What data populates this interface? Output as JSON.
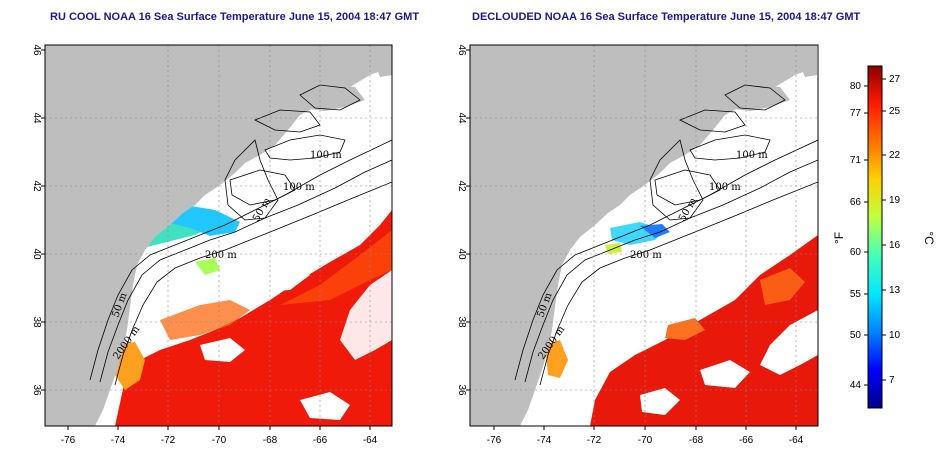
{
  "panels": [
    {
      "id": "left",
      "title": "RU COOL NOAA 16 Sea Surface Temperature June 15, 2004 18:47 GMT"
    },
    {
      "id": "right",
      "title": "DECLOUDED NOAA 16 Sea Surface Temperature June 15, 2004 18:47 GMT"
    }
  ],
  "axes": {
    "lon_ticks": [
      "-76",
      "-74",
      "-72",
      "-70",
      "-68",
      "-66",
      "-64"
    ],
    "lat_ticks": [
      "46",
      "44",
      "42",
      "40",
      "38",
      "36"
    ]
  },
  "contour_labels": [
    "100 m",
    "100 m",
    "50 m",
    "200 m",
    "50 m",
    "2000 m"
  ],
  "colorbar": {
    "fahrenheit_ticks": [
      "80",
      "77",
      "71",
      "66",
      "60",
      "55",
      "50",
      "44"
    ],
    "celsius_ticks": [
      "27",
      "25",
      "22",
      "19",
      "16",
      "13",
      "10",
      "7"
    ],
    "fahrenheit_unit": "°F",
    "celsius_unit": "°C",
    "colors": [
      "#00008b",
      "#0000ff",
      "#0080ff",
      "#00e5ff",
      "#40ffbf",
      "#c0ff40",
      "#ffd000",
      "#ff7000",
      "#ff1a00",
      "#8b0000"
    ]
  },
  "colors": {
    "land": "#bebebe",
    "cloud": "#ffffff",
    "title": "#1a1a8c"
  }
}
